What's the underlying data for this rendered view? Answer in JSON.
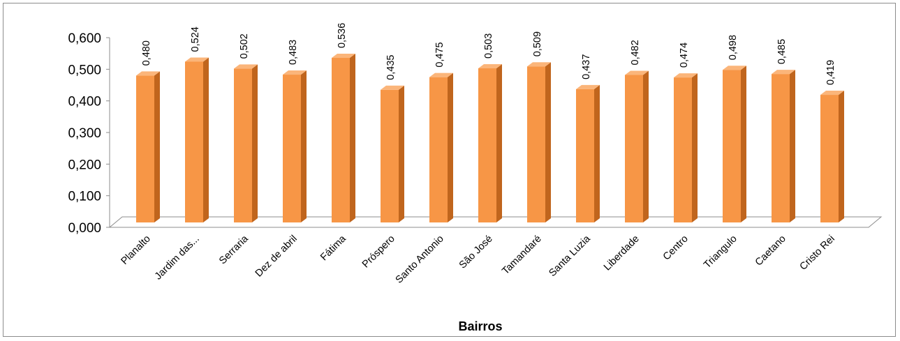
{
  "chart_data": {
    "type": "bar",
    "title": "",
    "xlabel": "Bairros",
    "ylabel": "",
    "categories": [
      "Planalto",
      "Jardim das...",
      "Serraria",
      "Dez de abril",
      "Fátima",
      "Próspero",
      "Santo Antonio",
      "São José",
      "Tamandaré",
      "Santa Luzia",
      "Liberdade",
      "Centro",
      "Triangulo",
      "Caetano",
      "Cristo Rei"
    ],
    "values": [
      0.48,
      0.524,
      0.502,
      0.483,
      0.536,
      0.435,
      0.475,
      0.503,
      0.509,
      0.437,
      0.482,
      0.474,
      0.498,
      0.485,
      0.419
    ],
    "value_labels": [
      "0,480",
      "0,524",
      "0,502",
      "0,483",
      "0,536",
      "0,435",
      "0,475",
      "0,503",
      "0,509",
      "0,437",
      "0,482",
      "0,474",
      "0,498",
      "0,485",
      "0,419"
    ],
    "ylim": [
      0,
      0.6
    ],
    "yticks": [
      0,
      0.1,
      0.2,
      0.3,
      0.4,
      0.5,
      0.6
    ],
    "ytick_labels": [
      "0,000",
      "0,100",
      "0,200",
      "0,300",
      "0,400",
      "0,500",
      "0,600"
    ],
    "grid": false,
    "legend": "none",
    "style": "3d-column",
    "colors": {
      "bar_front": "#f79646",
      "bar_side": "#c0651d",
      "bar_top": "#fbb57a",
      "axis": "#8c8c8c"
    }
  }
}
